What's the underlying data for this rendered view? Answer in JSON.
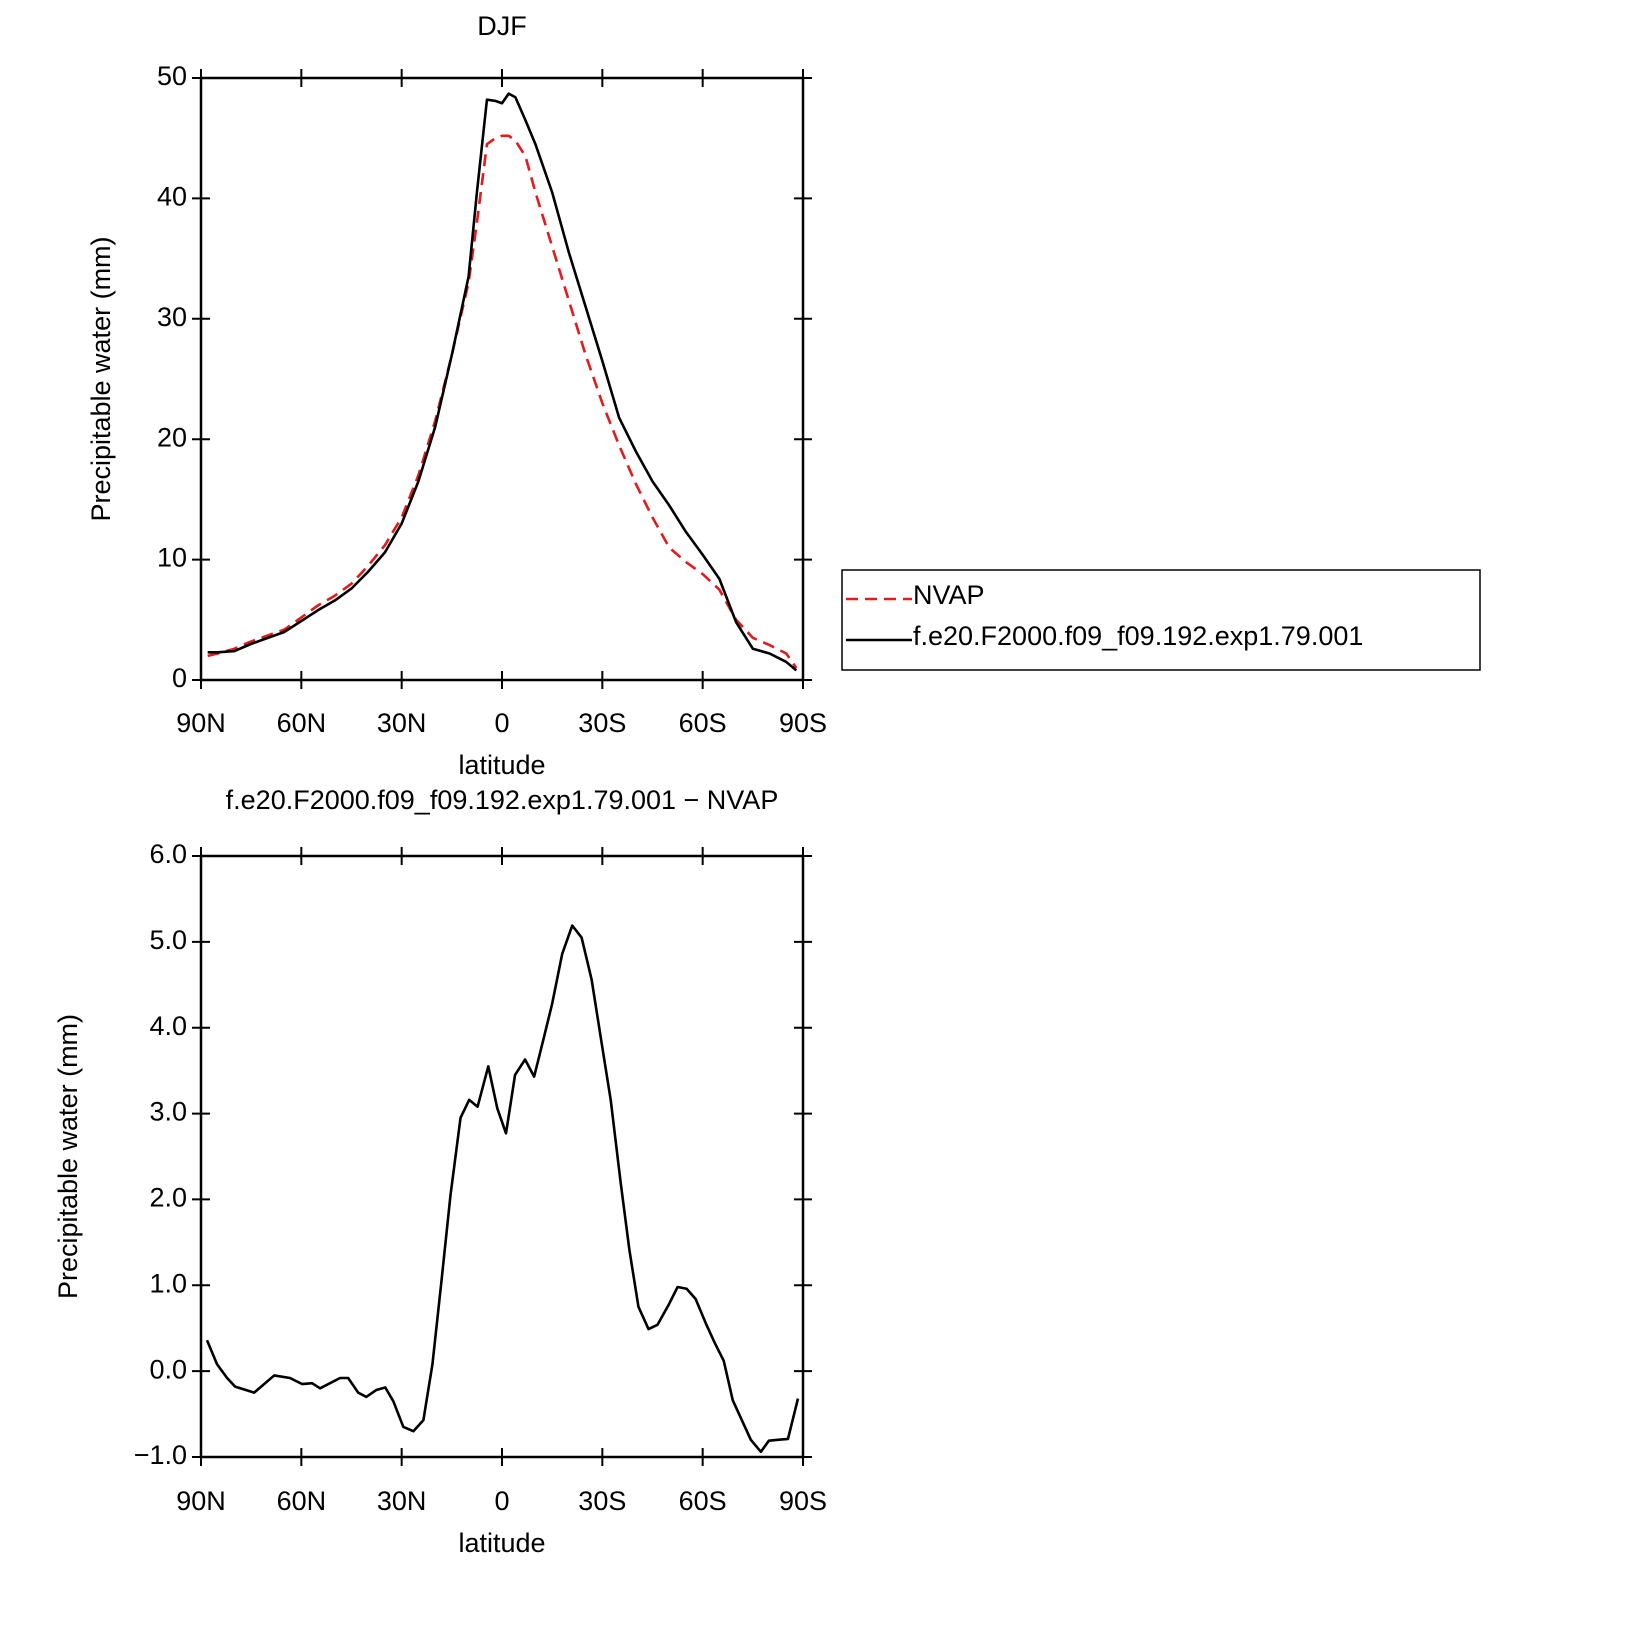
{
  "chart_data": [
    {
      "type": "line",
      "title": "DJF",
      "x_label": "latitude",
      "y_label": "Precipitable water (mm)",
      "xlim": [
        90,
        -90
      ],
      "xticks": [
        {
          "value": 90,
          "label": "90N"
        },
        {
          "value": 60,
          "label": "60N"
        },
        {
          "value": 30,
          "label": "30N"
        },
        0,
        {
          "value": -30,
          "label": "30S"
        },
        {
          "value": -60,
          "label": "60S"
        },
        {
          "value": -90,
          "label": "90S"
        }
      ],
      "ylim": [
        0,
        50
      ],
      "yticks": [
        0,
        10,
        20,
        30,
        40,
        50
      ],
      "legend": "right",
      "x": [
        88,
        85,
        80,
        75,
        70,
        65,
        60,
        55,
        50,
        45,
        40,
        35,
        30,
        25,
        20,
        15,
        10,
        7.5,
        4.5,
        2,
        0,
        -2,
        -4,
        -7,
        -10,
        -15,
        -20,
        -25,
        -30,
        -35,
        -40,
        -45,
        -50,
        -55,
        -60,
        -65,
        -70,
        -75,
        -80,
        -85,
        -88
      ],
      "series": [
        {
          "name": "NVAP",
          "color": "#e41a1c",
          "line_style": "dashed",
          "values": [
            2.0,
            2.2,
            2.6,
            3.2,
            3.7,
            4.2,
            5.2,
            6.2,
            7.0,
            8.0,
            9.5,
            11.2,
            13.5,
            17.0,
            21.5,
            27.0,
            33.0,
            38.0,
            44.5,
            45.0,
            45.2,
            45.2,
            44.8,
            43.5,
            40.5,
            36.0,
            31.5,
            27.0,
            23.0,
            19.5,
            16.3,
            13.5,
            11.0,
            9.8,
            8.8,
            7.5,
            5.0,
            3.5,
            2.9,
            2.2,
            1.0
          ]
        },
        {
          "name": "f.e20.F2000.f09_f09.192.exp1.79.001",
          "color": "#000000",
          "line_style": "solid",
          "values": [
            2.3,
            2.3,
            2.4,
            3.0,
            3.5,
            4.0,
            4.9,
            5.8,
            6.6,
            7.6,
            9.0,
            10.6,
            13.0,
            16.5,
            21.0,
            27.0,
            33.5,
            40.5,
            48.2,
            48.1,
            47.9,
            48.7,
            48.4,
            46.5,
            44.5,
            40.5,
            35.5,
            31.0,
            26.5,
            21.8,
            19.0,
            16.5,
            14.5,
            12.3,
            10.4,
            8.4,
            4.8,
            2.6,
            2.2,
            1.5,
            0.8
          ]
        }
      ]
    },
    {
      "type": "line",
      "title": "f.e20.F2000.f09_f09.192.exp1.79.001 − NVAP",
      "x_label": "latitude",
      "y_label": "Precipitable water (mm)",
      "xlim": [
        90,
        -90
      ],
      "xticks": [
        {
          "value": 90,
          "label": "90N"
        },
        {
          "value": 60,
          "label": "60N"
        },
        {
          "value": 30,
          "label": "30N"
        },
        0,
        {
          "value": -30,
          "label": "30S"
        },
        {
          "value": -60,
          "label": "60S"
        },
        {
          "value": -90,
          "label": "90S"
        }
      ],
      "ylim": [
        -1,
        6
      ],
      "yticks": [
        {
          "value": -1,
          "label": "−1.0"
        },
        {
          "value": 0,
          "label": "0.0"
        },
        {
          "value": 1,
          "label": "1.0"
        },
        {
          "value": 2,
          "label": "2.0"
        },
        {
          "value": 3,
          "label": "3.0"
        },
        {
          "value": 4,
          "label": "4.0"
        },
        {
          "value": 5,
          "label": "5.0"
        },
        {
          "value": 6,
          "label": "6.0"
        }
      ],
      "x": [
        88.2,
        85.2,
        82.2,
        79.8,
        74.1,
        68.1,
        63.4,
        59.8,
        56.8,
        54.4,
        48.4,
        46,
        43,
        40.6,
        37.6,
        34.9,
        32.5,
        29.5,
        26.5,
        23.5,
        20.8,
        18.1,
        15.4,
        12.4,
        9.8,
        7.3,
        4.1,
        1.4,
        -1.2,
        -3.9,
        -6.9,
        -9.6,
        -12.3,
        -15,
        -18,
        -21,
        -23.8,
        -26.8,
        -29.8,
        -32.5,
        -35.5,
        -38.1,
        -40.8,
        -43.8,
        -46.5,
        -49.8,
        -52.5,
        -55.2,
        -57.9,
        -60.9,
        -63.6,
        -66.3,
        -69,
        -71.7,
        -74.4,
        -77.4,
        -79.8,
        -82.5,
        -85.5,
        -88.5
      ],
      "series": [
        {
          "color": "#000000",
          "line_style": "solid",
          "values": [
            0.36,
            0.08,
            -0.08,
            -0.18,
            -0.25,
            -0.05,
            -0.08,
            -0.15,
            -0.14,
            -0.2,
            -0.08,
            -0.08,
            -0.25,
            -0.3,
            -0.22,
            -0.19,
            -0.35,
            -0.65,
            -0.7,
            -0.57,
            0.08,
            1.05,
            2.05,
            2.95,
            3.16,
            3.08,
            3.55,
            3.06,
            2.77,
            3.45,
            3.63,
            3.43,
            3.85,
            4.28,
            4.86,
            5.19,
            5.05,
            4.56,
            3.82,
            3.16,
            2.19,
            1.41,
            0.75,
            0.49,
            0.54,
            0.77,
            0.98,
            0.96,
            0.84,
            0.56,
            0.33,
            0.12,
            -0.34,
            -0.57,
            -0.8,
            -0.94,
            -0.81,
            -0.8,
            -0.79,
            -0.32
          ]
        }
      ]
    }
  ]
}
